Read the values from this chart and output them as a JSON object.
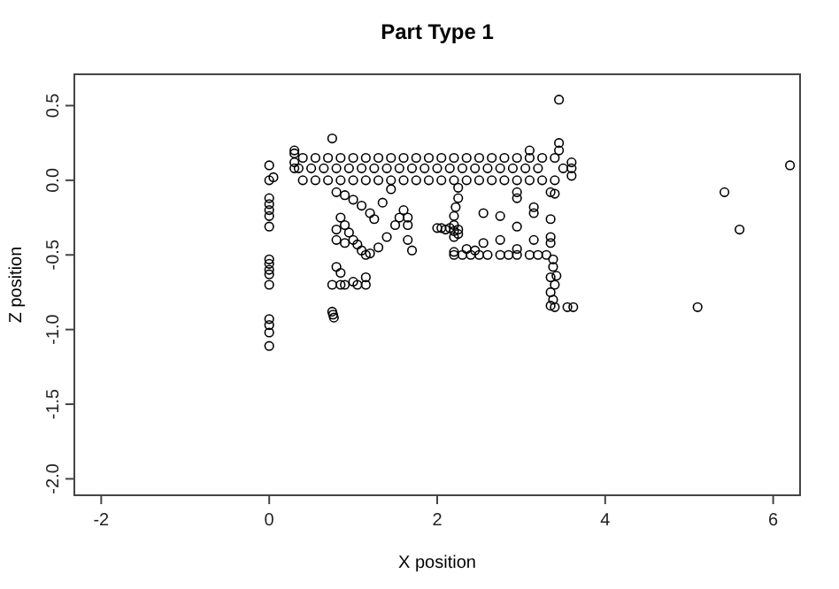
{
  "chart_data": {
    "type": "scatter",
    "title": "Part Type 1",
    "xlabel": "X position",
    "ylabel": "Z position",
    "marker": "circle",
    "xlim": [
      -2.32,
      6.32
    ],
    "ylim": [
      -2.11,
      0.71
    ],
    "xticks": [
      -2,
      0,
      2,
      4,
      6
    ],
    "yticks": [
      0.5,
      {
        "value": 0,
        "label": "0.0"
      },
      -0.5,
      {
        "value": -1,
        "label": "-1.0"
      },
      -1.5,
      {
        "value": -2,
        "label": "-2.0"
      }
    ],
    "series": [
      {
        "color": "#000000",
        "x": [
          0,
          0,
          0,
          0,
          0,
          0,
          0,
          0,
          0,
          0,
          0,
          0,
          0,
          0,
          0,
          0,
          0.05,
          0.75,
          3.45,
          3.1,
          3.45,
          3.45,
          0.8,
          0.9,
          1.0,
          1.1,
          1.2,
          1.25,
          1.35,
          1.45,
          0.85,
          0.9,
          0.95,
          1.0,
          1.05,
          1.1,
          1.15,
          1.2,
          1.3,
          1.4,
          1.5,
          1.55,
          1.6,
          0.8,
          0.8,
          0.9,
          1.65,
          1.65,
          1.7,
          1.65,
          0.8,
          0.85,
          0.75,
          0.85,
          0.9,
          1.0,
          1.05,
          1.15,
          1.15,
          0.75,
          0.76,
          0.77,
          2.0,
          2.05,
          2.1,
          2.15,
          2.2,
          2.25,
          2.2,
          2.25,
          2.2,
          2.25,
          2.25,
          2.22,
          2.2,
          2.2,
          2.3,
          2.4,
          2.5,
          2.6,
          2.75,
          2.85,
          2.95,
          3.1,
          3.2,
          3.3,
          2.55,
          2.55,
          2.75,
          2.75,
          2.95,
          2.95,
          2.95,
          2.95,
          3.15,
          3.15,
          3.15,
          2.2,
          2.35,
          2.45,
          3.35,
          3.4,
          3.35,
          3.35,
          3.35,
          3.38,
          3.38,
          3.35,
          3.4,
          3.42,
          3.35,
          3.38,
          3.35,
          3.4,
          3.55,
          3.62,
          5.1,
          5.42,
          5.6,
          6.2,
          3.6,
          3.6,
          3.6,
          0.3,
          0.3,
          0.3,
          0.3,
          0.4,
          0.55,
          0.7,
          0.85,
          1.0,
          1.15,
          1.3,
          1.45,
          1.6,
          1.75,
          1.9,
          2.05,
          2.2,
          2.35,
          2.5,
          2.65,
          2.8,
          2.95,
          3.1,
          3.25,
          3.4,
          0.35,
          0.5,
          0.65,
          0.8,
          0.95,
          1.1,
          1.25,
          1.4,
          1.55,
          1.7,
          1.85,
          2.0,
          2.15,
          2.3,
          2.45,
          2.6,
          2.75,
          2.9,
          3.05,
          3.2,
          3.5,
          0.4,
          0.55,
          0.7,
          0.85,
          1.0,
          1.15,
          1.3,
          1.45,
          1.6,
          1.75,
          1.9,
          2.05,
          2.2,
          2.35,
          2.5,
          2.65,
          2.8,
          2.95,
          3.1,
          3.25,
          3.4
        ],
        "values": [
          0.1,
          0,
          -0.12,
          -0.16,
          -0.2,
          -0.24,
          -0.31,
          -0.53,
          -0.56,
          -0.6,
          -0.63,
          -0.7,
          -0.93,
          -0.97,
          -1.02,
          -1.11,
          0.02,
          0.28,
          0.54,
          0.2,
          0.25,
          0.2,
          -0.08,
          -0.1,
          -0.13,
          -0.17,
          -0.22,
          -0.26,
          -0.15,
          -0.06,
          -0.25,
          -0.3,
          -0.35,
          -0.4,
          -0.43,
          -0.47,
          -0.5,
          -0.49,
          -0.45,
          -0.38,
          -0.3,
          -0.25,
          -0.2,
          -0.33,
          -0.4,
          -0.42,
          -0.3,
          -0.4,
          -0.47,
          -0.25,
          -0.58,
          -0.62,
          -0.7,
          -0.7,
          -0.7,
          -0.68,
          -0.7,
          -0.65,
          -0.7,
          -0.88,
          -0.9,
          -0.92,
          -0.32,
          -0.32,
          -0.33,
          -0.32,
          -0.34,
          -0.33,
          -0.3,
          -0.36,
          -0.38,
          -0.05,
          -0.12,
          -0.18,
          -0.24,
          -0.5,
          -0.5,
          -0.5,
          -0.5,
          -0.5,
          -0.5,
          -0.5,
          -0.5,
          -0.5,
          -0.5,
          -0.5,
          -0.22,
          -0.42,
          -0.24,
          -0.4,
          -0.08,
          -0.12,
          -0.31,
          -0.46,
          -0.18,
          -0.22,
          -0.4,
          -0.48,
          -0.46,
          -0.47,
          -0.08,
          -0.09,
          -0.26,
          -0.38,
          -0.42,
          -0.53,
          -0.58,
          -0.65,
          -0.7,
          -0.64,
          -0.75,
          -0.8,
          -0.84,
          -0.85,
          -0.85,
          -0.85,
          -0.85,
          -0.08,
          -0.33,
          0.1,
          0.12,
          0.08,
          0.03,
          0.2,
          0.18,
          0.12,
          0.08,
          0.15,
          0.15,
          0.15,
          0.15,
          0.15,
          0.15,
          0.15,
          0.15,
          0.15,
          0.15,
          0.15,
          0.15,
          0.15,
          0.15,
          0.15,
          0.15,
          0.15,
          0.15,
          0.15,
          0.15,
          0.15,
          0.08,
          0.08,
          0.08,
          0.08,
          0.08,
          0.08,
          0.08,
          0.08,
          0.08,
          0.08,
          0.08,
          0.08,
          0.08,
          0.08,
          0.08,
          0.08,
          0.08,
          0.08,
          0.08,
          0.08,
          0.08,
          0,
          0,
          0,
          0,
          0,
          0,
          0,
          0,
          0,
          0,
          0,
          0,
          0,
          0,
          0,
          0,
          0,
          0,
          0,
          0,
          0
        ]
      }
    ]
  }
}
